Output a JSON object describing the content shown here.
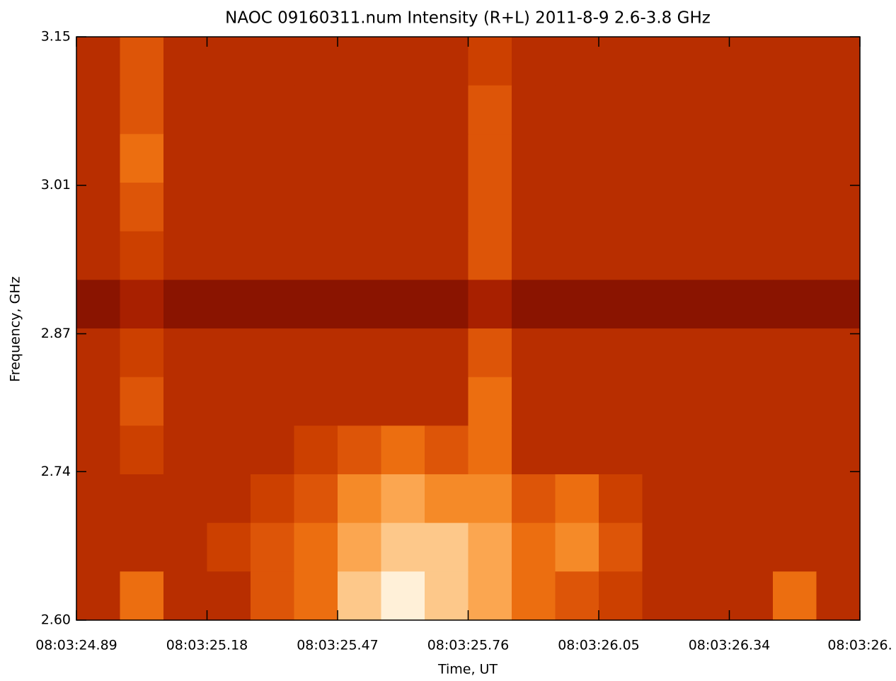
{
  "chart_data": {
    "type": "heatmap",
    "title": "NAOC  09160311.num Intensity (R+L) 2011-8-9  2.6-3.8 GHz",
    "xlabel": "Time, UT",
    "ylabel": "Frequency, GHz",
    "xlim": [
      24.89,
      26.63
    ],
    "xticks": [
      {
        "value": 24.89,
        "label": "08:03:24.89"
      },
      {
        "value": 25.18,
        "label": "08:03:25.18"
      },
      {
        "value": 25.47,
        "label": "08:03:25.47"
      },
      {
        "value": 25.76,
        "label": "08:03:25.76"
      },
      {
        "value": 26.05,
        "label": "08:03:26.05"
      },
      {
        "value": 26.34,
        "label": "08:03:26.34"
      },
      {
        "value": 26.63,
        "label": "08:03:26."
      }
    ],
    "ylim": [
      2.6,
      3.15
    ],
    "yticks": [
      {
        "value": 2.6,
        "label": "2.60"
      },
      2.74,
      2.87,
      3.01,
      3.15
    ],
    "colors": [
      "#5a0800",
      "#8a1400",
      "#a82000",
      "#b82e00",
      "#cc4000",
      "#dd5508",
      "#ec6e10",
      "#f58a28",
      "#fba650",
      "#fdc88a",
      "#fff0d8"
    ],
    "z": [
      [
        3,
        5,
        3,
        3,
        3,
        3,
        3,
        3,
        3,
        4,
        3,
        3,
        3,
        3,
        3,
        3,
        3,
        3
      ],
      [
        3,
        5,
        3,
        3,
        3,
        3,
        3,
        3,
        3,
        5,
        3,
        3,
        3,
        3,
        3,
        3,
        3,
        3
      ],
      [
        3,
        6,
        3,
        3,
        3,
        3,
        3,
        3,
        3,
        5,
        3,
        3,
        3,
        3,
        3,
        3,
        3,
        3
      ],
      [
        3,
        5,
        3,
        3,
        3,
        3,
        3,
        3,
        3,
        5,
        3,
        3,
        3,
        3,
        3,
        3,
        3,
        3
      ],
      [
        3,
        4,
        3,
        3,
        3,
        3,
        3,
        3,
        3,
        5,
        3,
        3,
        3,
        3,
        3,
        3,
        3,
        3
      ],
      [
        1,
        2,
        1,
        1,
        1,
        1,
        1,
        1,
        1,
        2,
        1,
        1,
        1,
        1,
        1,
        1,
        1,
        1
      ],
      [
        3,
        4,
        3,
        3,
        3,
        3,
        3,
        3,
        3,
        5,
        3,
        3,
        3,
        3,
        3,
        3,
        3,
        3
      ],
      [
        3,
        5,
        3,
        3,
        3,
        3,
        3,
        3,
        3,
        6,
        3,
        3,
        3,
        3,
        3,
        3,
        3,
        3
      ],
      [
        3,
        4,
        3,
        3,
        3,
        4,
        5,
        6,
        5,
        6,
        3,
        3,
        3,
        3,
        3,
        3,
        3,
        3
      ],
      [
        3,
        3,
        3,
        3,
        4,
        5,
        7,
        8,
        7,
        7,
        5,
        6,
        4,
        3,
        3,
        3,
        3,
        3
      ],
      [
        3,
        3,
        3,
        4,
        5,
        6,
        8,
        9,
        9,
        8,
        6,
        7,
        5,
        3,
        3,
        3,
        3,
        3
      ],
      [
        3,
        6,
        3,
        3,
        5,
        6,
        9,
        10,
        9,
        8,
        6,
        5,
        4,
        3,
        3,
        3,
        6,
        3
      ]
    ]
  }
}
